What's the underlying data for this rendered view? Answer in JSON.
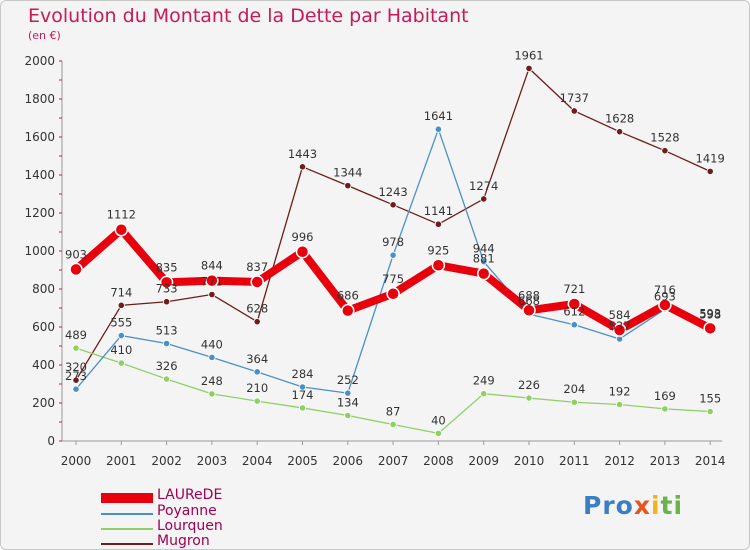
{
  "chart_data": {
    "type": "line",
    "title": "Evolution du Montant de la Dette par Habitant",
    "subtitle": "(en €)",
    "xlabel": "",
    "ylabel": "",
    "ylim": [
      0,
      2000
    ],
    "yticks": [
      0,
      200,
      400,
      600,
      800,
      1000,
      1200,
      1400,
      1600,
      1800,
      2000
    ],
    "categories": [
      "2000",
      "2001",
      "2002",
      "2003",
      "2004",
      "2005",
      "2006",
      "2007",
      "2008",
      "2009",
      "2010",
      "2011",
      "2012",
      "2013",
      "2014"
    ],
    "series": [
      {
        "name": "LAUReDE",
        "color": "#e8000c",
        "values": [
          903,
          1112,
          835,
          844,
          837,
          996,
          686,
          775,
          925,
          881,
          688,
          721,
          584,
          716,
          593
        ]
      },
      {
        "name": "Poyanne",
        "color": "#4a90c8",
        "values": [
          273,
          555,
          513,
          440,
          364,
          284,
          252,
          978,
          1641,
          944,
          668,
          612,
          537,
          693,
          598
        ]
      },
      {
        "name": "Lourquen",
        "color": "#8fd066",
        "values": [
          489,
          410,
          326,
          248,
          210,
          174,
          134,
          87,
          40,
          249,
          226,
          204,
          192,
          169,
          155
        ]
      },
      {
        "name": "Mugron",
        "color": "#6e1c1c",
        "values": [
          320,
          714,
          733,
          771,
          628,
          1443,
          1344,
          1243,
          1141,
          1274,
          1961,
          1737,
          1628,
          1528,
          1419
        ]
      }
    ],
    "legend_position": "bottom-left",
    "grid": false
  },
  "branding": {
    "logo_text": [
      "Pro",
      "x",
      "i",
      "ti"
    ]
  }
}
